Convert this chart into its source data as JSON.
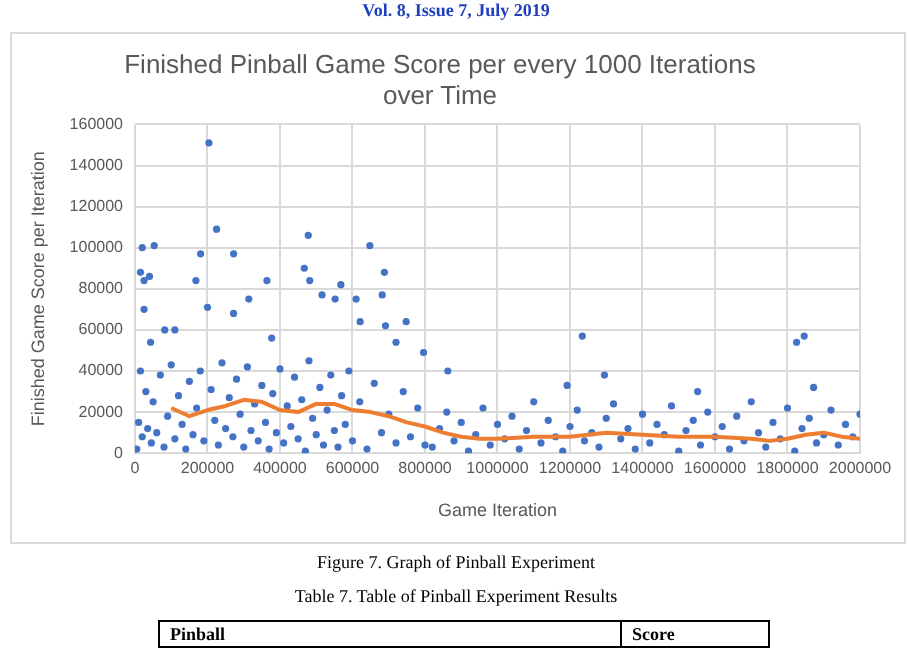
{
  "chart_data": {
    "type": "scatter",
    "title": "Finished Pinball Game Score per every 1000 Iterations over Time",
    "xlabel": "Game Iteration",
    "ylabel": "Finished Game Score per Iteration",
    "annotations": [
      "Vol. 8, Issue 7, July 2019",
      "Figure 7. Graph of Pinball Experiment",
      "Table 7. Table of Pinball Experiment Results",
      "Pinball",
      "Score"
    ],
    "xlim": [
      0,
      2000000
    ],
    "xticks": [
      0,
      200000,
      400000,
      600000,
      800000,
      1000000,
      1200000,
      1400000,
      1600000,
      1800000,
      2000000
    ],
    "ylim": [
      0,
      160000
    ],
    "yticks": [
      0,
      20000,
      40000,
      60000,
      80000,
      100000,
      120000,
      140000,
      160000
    ],
    "grid": true,
    "legend": false,
    "marker": "circle",
    "series": [
      {
        "color": "#4472c4",
        "x": [
          15000,
          25000,
          20000,
          53000,
          25000,
          40000,
          43000,
          82000,
          110000,
          168000,
          181000,
          200000,
          204000,
          225000,
          272000,
          272000,
          314000,
          364000,
          377000,
          467000,
          478000,
          482000,
          516000,
          568000,
          552000,
          610000,
          621000,
          648000,
          688000,
          682000,
          691000,
          720000,
          748000,
          796000,
          863000,
          1234000,
          1295000,
          1825000,
          1846000,
          1192000,
          1872000,
          1552000,
          5000,
          10000,
          15000,
          20000,
          30000,
          35000,
          45000,
          50000,
          60000,
          70000,
          80000,
          90000,
          100000,
          110000,
          120000,
          130000,
          140000,
          150000,
          160000,
          170000,
          180000,
          190000,
          210000,
          220000,
          230000,
          240000,
          250000,
          260000,
          270000,
          280000,
          290000,
          300000,
          310000,
          320000,
          330000,
          340000,
          350000,
          360000,
          370000,
          380000,
          390000,
          400000,
          410000,
          420000,
          430000,
          440000,
          450000,
          460000,
          470000,
          480000,
          490000,
          500000,
          510000,
          520000,
          530000,
          540000,
          550000,
          560000,
          570000,
          580000,
          590000,
          600000,
          620000,
          640000,
          660000,
          680000,
          700000,
          720000,
          740000,
          760000,
          780000,
          800000,
          820000,
          840000,
          860000,
          880000,
          900000,
          920000,
          940000,
          960000,
          980000,
          1000000,
          1020000,
          1040000,
          1060000,
          1080000,
          1100000,
          1120000,
          1140000,
          1160000,
          1180000,
          1200000,
          1220000,
          1240000,
          1260000,
          1280000,
          1300000,
          1320000,
          1340000,
          1360000,
          1380000,
          1400000,
          1420000,
          1440000,
          1460000,
          1480000,
          1500000,
          1520000,
          1540000,
          1560000,
          1580000,
          1600000,
          1620000,
          1640000,
          1660000,
          1680000,
          1700000,
          1720000,
          1740000,
          1760000,
          1780000,
          1800000,
          1820000,
          1840000,
          1860000,
          1880000,
          1900000,
          1920000,
          1940000,
          1960000,
          1980000,
          2000000
        ],
        "values": [
          88000,
          84000,
          100000,
          101000,
          70000,
          86000,
          54000,
          60000,
          60000,
          84000,
          97000,
          71000,
          151000,
          109000,
          97000,
          68000,
          75000,
          84000,
          56000,
          90000,
          106000,
          84000,
          77000,
          82000,
          75000,
          75000,
          64000,
          101000,
          88000,
          77000,
          62000,
          54000,
          64000,
          49000,
          40000,
          57000,
          38000,
          54000,
          57000,
          33000,
          32000,
          30000,
          2000,
          15000,
          40000,
          8000,
          30000,
          12000,
          5000,
          25000,
          10000,
          38000,
          3000,
          18000,
          43000,
          7000,
          28000,
          14000,
          2000,
          35000,
          9000,
          22000,
          40000,
          6000,
          31000,
          16000,
          4000,
          44000,
          12000,
          27000,
          8000,
          36000,
          19000,
          3000,
          42000,
          11000,
          24000,
          6000,
          33000,
          15000,
          2000,
          29000,
          10000,
          41000,
          5000,
          23000,
          13000,
          37000,
          7000,
          26000,
          1000,
          45000,
          17000,
          9000,
          32000,
          4000,
          21000,
          38000,
          11000,
          3000,
          28000,
          14000,
          40000,
          6000,
          25000,
          2000,
          34000,
          10000,
          19000,
          5000,
          30000,
          8000,
          22000,
          4000,
          3000,
          12000,
          20000,
          6000,
          15000,
          1000,
          9000,
          22000,
          4000,
          14000,
          7000,
          18000,
          2000,
          11000,
          25000,
          5000,
          16000,
          8000,
          1000,
          13000,
          21000,
          6000,
          10000,
          3000,
          17000,
          24000,
          7000,
          12000,
          2000,
          19000,
          5000,
          14000,
          9000,
          23000,
          1000,
          11000,
          16000,
          4000,
          20000,
          8000,
          13000,
          2000,
          18000,
          6000,
          25000,
          10000,
          3000,
          15000,
          7000,
          22000,
          1000,
          12000,
          17000,
          5000,
          9000,
          21000,
          4000,
          14000,
          8000,
          19000
        ]
      },
      {
        "type": "line",
        "color": "#ed7d31",
        "marker": "none",
        "x": [
          100000,
          150000,
          200000,
          250000,
          300000,
          350000,
          400000,
          450000,
          500000,
          550000,
          600000,
          650000,
          700000,
          750000,
          800000,
          850000,
          900000,
          950000,
          1000000,
          1100000,
          1200000,
          1300000,
          1400000,
          1500000,
          1600000,
          1700000,
          1750000,
          1800000,
          1850000,
          1900000,
          1950000,
          2000000
        ],
        "values": [
          22000,
          18000,
          21000,
          23000,
          26000,
          25000,
          21000,
          20000,
          24000,
          24000,
          21000,
          20000,
          18000,
          15000,
          13000,
          10000,
          8000,
          7000,
          7000,
          8000,
          8000,
          10000,
          9000,
          8000,
          8000,
          7000,
          6000,
          7000,
          9000,
          10000,
          8000,
          7000
        ]
      }
    ]
  }
}
